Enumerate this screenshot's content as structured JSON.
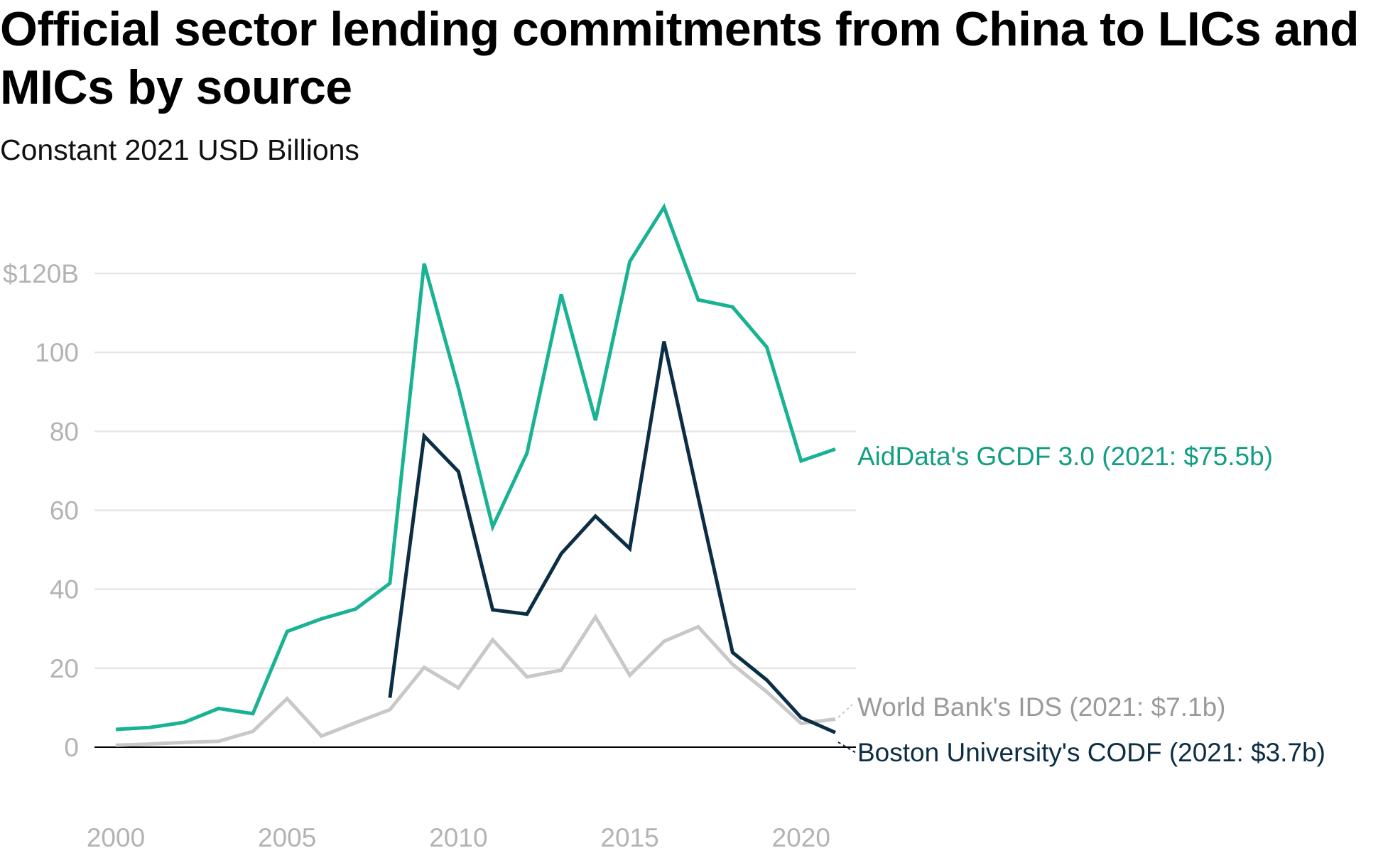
{
  "title": "Official sector lending commitments from China to LICs and MICs by source",
  "subtitle": "Constant 2021 USD Billions",
  "colors": {
    "aiddata": "#19b394",
    "worldbank": "#c8c8c8",
    "boston": "#0b2e45",
    "grid": "#e6e6e6",
    "baseline": "#000000",
    "tick": "#b3b3b3"
  },
  "chart_data": {
    "type": "line",
    "x": [
      2000,
      2001,
      2002,
      2003,
      2004,
      2005,
      2006,
      2007,
      2008,
      2009,
      2010,
      2011,
      2012,
      2013,
      2014,
      2015,
      2016,
      2017,
      2018,
      2019,
      2020,
      2021
    ],
    "ylim": [
      0,
      120
    ],
    "xlim": [
      2000,
      2021
    ],
    "y_ticks": [
      0,
      20,
      40,
      60,
      80,
      100,
      120
    ],
    "y_tick_labels": [
      "0",
      "20",
      "40",
      "60",
      "80",
      "100",
      "$120B"
    ],
    "x_ticks": [
      2000,
      2005,
      2010,
      2015,
      2020
    ],
    "x_tick_labels": [
      "2000",
      "2005",
      "2010",
      "2015",
      "2020"
    ],
    "grid": true,
    "legend": "direct labels at line ends",
    "series": [
      {
        "key": "aiddata",
        "label": "AidData's GCDF 3.0 (2021: $75.5b)",
        "color": "#19b394",
        "values": [
          4.5,
          5,
          6.3,
          9.8,
          8.5,
          29.3,
          32.5,
          35,
          41.5,
          122.5,
          91,
          55.8,
          74.5,
          114.7,
          82.8,
          123,
          136.8,
          113.3,
          111.5,
          101.3,
          72.5,
          75.5
        ]
      },
      {
        "key": "worldbank",
        "label": "World Bank's IDS (2021: $7.1b)",
        "color": "#c8c8c8",
        "values": [
          0.5,
          0.8,
          1.2,
          1.5,
          4,
          12.3,
          2.8,
          6.2,
          9.5,
          20.2,
          15,
          27.2,
          17.8,
          19.5,
          33,
          18.2,
          26.8,
          30.5,
          21,
          14,
          6,
          7.1
        ]
      },
      {
        "key": "boston",
        "label": "Boston University's CODF (2021: $3.7b)",
        "color": "#0b2e45",
        "values": [
          null,
          null,
          null,
          null,
          null,
          null,
          null,
          null,
          12.5,
          78.8,
          69.8,
          34.8,
          33.7,
          49,
          58.5,
          50.3,
          102.8,
          63.2,
          24,
          17,
          7.5,
          3.7
        ]
      }
    ]
  }
}
